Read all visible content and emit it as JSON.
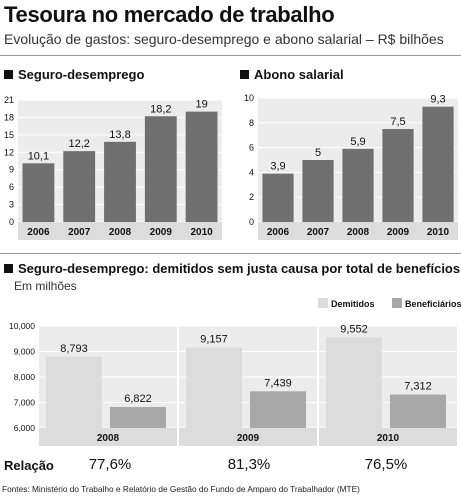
{
  "title": "Tesoura no mercado de trabalho",
  "subtitle": "Evolução de gastos: seguro-desemprego e abono salarial – R$ bilhões",
  "charts": {
    "seguro": {
      "title": "Seguro-desemprego"
    },
    "abono": {
      "title": "Abono salarial"
    },
    "demitidos": {
      "title": "Seguro-desemprego: demitidos sem justa causa por total de benefícios",
      "unit_note": "Em milhões"
    }
  },
  "relacao": {
    "label": "Relação",
    "values": [
      "77,6%",
      "81,3%",
      "76,5%"
    ]
  },
  "sources": "Fontes: Ministério do Trabalho e Relatório de Gestão do Fundo de Amparo do Trabalhador (MTE)",
  "colors": {
    "bar_dark": "#707070",
    "bar_light": "#dcdcdc",
    "bar_mid": "#a8a8a8",
    "panel_bg": "#ececec"
  },
  "chart_data": [
    {
      "type": "bar",
      "title": "Seguro-desemprego",
      "categories": [
        "2006",
        "2007",
        "2008",
        "2009",
        "2010"
      ],
      "values": [
        10.1,
        12.2,
        13.8,
        18.2,
        19
      ],
      "value_labels": [
        "10,1",
        "12,2",
        "13,8",
        "18,2",
        "19"
      ],
      "yticks": [
        0,
        3,
        6,
        9,
        12,
        15,
        18,
        21
      ],
      "ylim": [
        0,
        21
      ],
      "grid": true
    },
    {
      "type": "bar",
      "title": "Abono salarial",
      "categories": [
        "2006",
        "2007",
        "2008",
        "2009",
        "2010"
      ],
      "values": [
        3.9,
        5,
        5.9,
        7.5,
        9.3
      ],
      "value_labels": [
        "3,9",
        "5",
        "5,9",
        "7,5",
        "9,3"
      ],
      "yticks": [
        0,
        2,
        4,
        6,
        8,
        10
      ],
      "ylim": [
        0,
        10
      ],
      "grid": true
    },
    {
      "type": "bar",
      "title": "Seguro-desemprego: demitidos sem justa causa por total de benefícios",
      "categories": [
        "2008",
        "2009",
        "2010"
      ],
      "series": [
        {
          "name": "Demitidos",
          "values": [
            8.793,
            9.157,
            9.552
          ],
          "labels": [
            "8,793",
            "9,157",
            "9,552"
          ]
        },
        {
          "name": "Beneficiários",
          "values": [
            6.822,
            7.439,
            7.312
          ],
          "labels": [
            "6,822",
            "7,439",
            "7,312"
          ]
        }
      ],
      "yticks": [
        6,
        7,
        8,
        9,
        10
      ],
      "ytick_labels": [
        "6,000",
        "7,000",
        "8,000",
        "9,000",
        "10,000"
      ],
      "ylim": [
        6,
        10
      ],
      "legend": "top-right",
      "grid": true
    }
  ]
}
